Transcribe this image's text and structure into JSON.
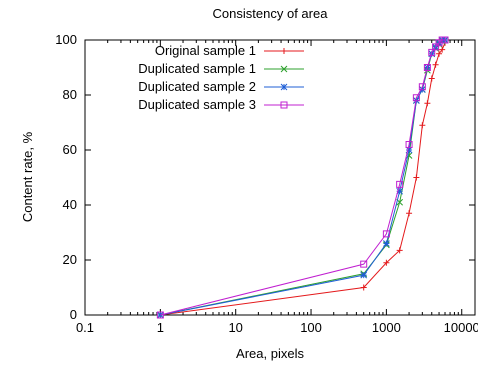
{
  "chart_data": {
    "type": "line",
    "title": "Consistency of area",
    "xlabel": "Area, pixels",
    "ylabel": "Content rate, %",
    "x_scale": "log",
    "xlim": [
      0.1,
      15000
    ],
    "ylim": [
      0,
      100
    ],
    "x_ticks": [
      {
        "value": 0.1,
        "label": "0.1"
      },
      {
        "value": 1,
        "label": "1"
      },
      {
        "value": 10,
        "label": "10"
      },
      {
        "value": 100,
        "label": "100"
      },
      {
        "value": 1000,
        "label": "1000"
      },
      {
        "value": 10000,
        "label": "10000"
      }
    ],
    "y_ticks": [
      {
        "value": 0,
        "label": "0"
      },
      {
        "value": 20,
        "label": "20"
      },
      {
        "value": 40,
        "label": "40"
      },
      {
        "value": 60,
        "label": "60"
      },
      {
        "value": 80,
        "label": "80"
      },
      {
        "value": 100,
        "label": "100"
      }
    ],
    "grid": false,
    "legend_position": "top-left",
    "series": [
      {
        "name": "Original sample 1",
        "color": "#e41a1c",
        "marker": "plus",
        "x": [
          1,
          500,
          1000,
          1500,
          2000,
          2500,
          3000,
          3500,
          4000,
          4500,
          5000,
          5500,
          6000
        ],
        "y": [
          0,
          10,
          19,
          23.5,
          37,
          50,
          69,
          77,
          86,
          91,
          95,
          96.5,
          99
        ]
      },
      {
        "name": "Duplicated sample 1",
        "color": "#2ca02c",
        "marker": "cross",
        "x": [
          1,
          500,
          1000,
          1500,
          2000,
          2500,
          3000,
          3500,
          4000,
          4500,
          5000,
          5500,
          6000
        ],
        "y": [
          0,
          15,
          25.5,
          41,
          58,
          78,
          82,
          89,
          95,
          97,
          98.5,
          99.5,
          100
        ]
      },
      {
        "name": "Duplicated sample 2",
        "color": "#1f5fd6",
        "marker": "star",
        "x": [
          1,
          500,
          1000,
          1500,
          2000,
          2500,
          3000,
          3500,
          4000,
          4500,
          5000,
          5500,
          6000
        ],
        "y": [
          0,
          14.5,
          26,
          45,
          60,
          78,
          82,
          90,
          95,
          97.5,
          99,
          100,
          100
        ]
      },
      {
        "name": "Duplicated sample 3",
        "color": "#c020d0",
        "marker": "square",
        "x": [
          1,
          500,
          1000,
          1500,
          2000,
          2500,
          3000,
          3500,
          4000,
          4500,
          5000,
          5500,
          6000
        ],
        "y": [
          0,
          18.5,
          29.5,
          47.5,
          62,
          79,
          83,
          90,
          95.5,
          97.5,
          99,
          100,
          100
        ]
      }
    ]
  }
}
